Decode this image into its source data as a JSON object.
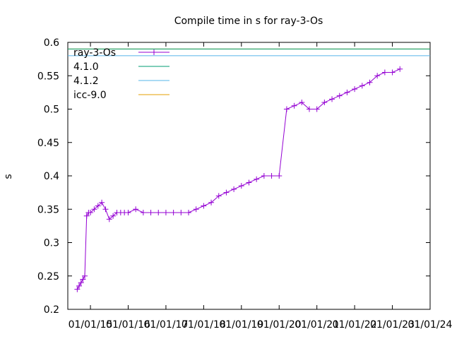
{
  "chart_data": {
    "type": "line",
    "title": "Compile time in s for ray-3-Os",
    "xlabel": "",
    "ylabel": "s",
    "ylim": [
      0.2,
      0.6
    ],
    "yticks": [
      "0.2",
      "0.25",
      "0.3",
      "0.35",
      "0.4",
      "0.45",
      "0.5",
      "0.55",
      "0.6"
    ],
    "xlim": [
      2014.4,
      2024.0
    ],
    "xticks": [
      {
        "x": 2015,
        "label": "01/01/15"
      },
      {
        "x": 2016,
        "label": "01/01/16"
      },
      {
        "x": 2017,
        "label": "01/01/17"
      },
      {
        "x": 2018,
        "label": "01/01/18"
      },
      {
        "x": 2019,
        "label": "01/01/19"
      },
      {
        "x": 2020,
        "label": "01/01/20"
      },
      {
        "x": 2021,
        "label": "01/01/21"
      },
      {
        "x": 2022,
        "label": "01/01/22"
      },
      {
        "x": 2023,
        "label": "01/01/23"
      },
      {
        "x": 2024,
        "label": "01/01/24"
      }
    ],
    "grid": false,
    "legend_position": "top-left",
    "series": [
      {
        "name": "ray-3-Os",
        "color": "#9400d3",
        "marker": "plus",
        "x": [
          2014.65,
          2014.7,
          2014.75,
          2014.8,
          2014.85,
          2014.9,
          2014.95,
          2015.0,
          2015.1,
          2015.2,
          2015.3,
          2015.4,
          2015.5,
          2015.6,
          2015.7,
          2015.8,
          2015.9,
          2016.0,
          2016.2,
          2016.4,
          2016.6,
          2016.8,
          2017.0,
          2017.2,
          2017.4,
          2017.6,
          2017.8,
          2018.0,
          2018.2,
          2018.4,
          2018.6,
          2018.8,
          2019.0,
          2019.2,
          2019.4,
          2019.6,
          2019.8,
          2020.0,
          2020.2,
          2020.4,
          2020.6,
          2020.8,
          2021.0,
          2021.2,
          2021.4,
          2021.6,
          2021.8,
          2022.0,
          2022.2,
          2022.4,
          2022.6,
          2022.8,
          2023.0,
          2023.2
        ],
        "y": [
          0.23,
          0.235,
          0.24,
          0.245,
          0.25,
          0.34,
          0.345,
          0.345,
          0.35,
          0.355,
          0.36,
          0.35,
          0.335,
          0.34,
          0.345,
          0.345,
          0.345,
          0.345,
          0.35,
          0.345,
          0.345,
          0.345,
          0.345,
          0.345,
          0.345,
          0.345,
          0.35,
          0.355,
          0.36,
          0.37,
          0.375,
          0.38,
          0.385,
          0.39,
          0.395,
          0.4,
          0.4,
          0.4,
          0.5,
          0.505,
          0.51,
          0.5,
          0.5,
          0.51,
          0.515,
          0.52,
          0.525,
          0.53,
          0.535,
          0.54,
          0.55,
          0.555,
          0.555,
          0.56
        ]
      },
      {
        "name": "4.1.0",
        "color": "#009e73",
        "x": [
          2014.4,
          2024.0
        ],
        "y": [
          0.59,
          0.59
        ]
      },
      {
        "name": "4.1.2",
        "color": "#56b4e9",
        "x": [
          2014.4,
          2024.0
        ],
        "y": [
          0.58,
          0.58
        ]
      },
      {
        "name": "icc-9.0",
        "color": "#e69f00",
        "x": [
          2014.4,
          2024.0
        ],
        "y": [
          0.59,
          0.59
        ]
      }
    ]
  }
}
